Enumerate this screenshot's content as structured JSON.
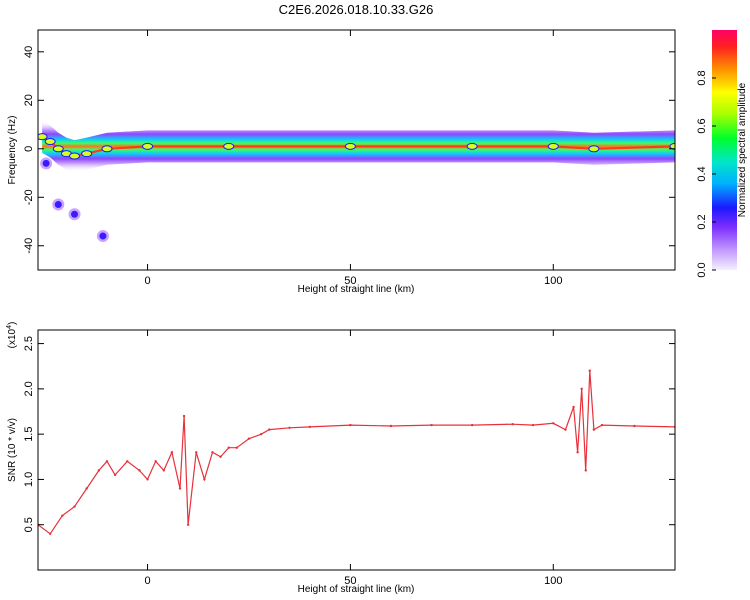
{
  "title": "C2E6.2026.018.10.33.G26",
  "chart_data": [
    {
      "type": "heatmap",
      "xlabel": "Height of straight line (km)",
      "ylabel": "Frequency (Hz)",
      "xlim": [
        -27,
        130
      ],
      "ylim": [
        -50,
        49
      ],
      "xticks": [
        "0",
        "50",
        "100"
      ],
      "yticks": [
        "-40",
        "-20",
        "0",
        "20",
        "40"
      ],
      "colorbar": {
        "label": "Normalized spectral amplitude",
        "ticks": [
          "0.0",
          "0.2",
          "0.4",
          "0.6",
          "0.8"
        ],
        "range": [
          0,
          1
        ]
      },
      "ridge": [
        {
          "x": -26,
          "y": 5
        },
        {
          "x": -24,
          "y": 3
        },
        {
          "x": -22,
          "y": 0
        },
        {
          "x": -20,
          "y": -2
        },
        {
          "x": -18,
          "y": -3
        },
        {
          "x": -15,
          "y": -2
        },
        {
          "x": -10,
          "y": 0
        },
        {
          "x": 0,
          "y": 1
        },
        {
          "x": 20,
          "y": 1
        },
        {
          "x": 50,
          "y": 1
        },
        {
          "x": 80,
          "y": 1
        },
        {
          "x": 100,
          "y": 1
        },
        {
          "x": 110,
          "y": 0
        },
        {
          "x": 130,
          "y": 1
        }
      ],
      "blobs": [
        {
          "x": -25,
          "y": -6
        },
        {
          "x": -22,
          "y": -23
        },
        {
          "x": -18,
          "y": -27
        },
        {
          "x": -11,
          "y": -36
        }
      ]
    },
    {
      "type": "line",
      "xlabel": "Height of straight line (km)",
      "ylabel": "SNR (10 * v/v)",
      "yscale_label": "(x10",
      "yscale_exp": "4",
      "yscale_close": ")",
      "xlim": [
        -27,
        130
      ],
      "ylim": [
        0,
        2.65
      ],
      "xticks": [
        "0",
        "50",
        "100"
      ],
      "yticks": [
        "0.5",
        "1.0",
        "1.5",
        "2.0",
        "2.5"
      ],
      "color": "#e8313a",
      "series": [
        {
          "x": [
            -27,
            -24,
            -21,
            -18,
            -15,
            -12,
            -10,
            -8,
            -5,
            -2,
            0,
            2,
            4,
            6,
            8,
            9,
            10,
            12,
            14,
            16,
            18,
            20,
            22,
            25,
            28,
            30,
            35,
            40,
            50,
            60,
            70,
            80,
            90,
            95,
            100,
            103,
            105,
            106,
            107,
            108,
            109,
            110,
            112,
            120,
            130
          ],
          "values": [
            0.5,
            0.4,
            0.6,
            0.7,
            0.9,
            1.1,
            1.2,
            1.05,
            1.2,
            1.1,
            1.0,
            1.2,
            1.1,
            1.3,
            0.9,
            1.7,
            0.5,
            1.3,
            1.0,
            1.3,
            1.25,
            1.35,
            1.35,
            1.45,
            1.5,
            1.55,
            1.57,
            1.58,
            1.6,
            1.59,
            1.6,
            1.6,
            1.61,
            1.6,
            1.62,
            1.55,
            1.8,
            1.3,
            2.0,
            1.1,
            2.2,
            1.55,
            1.6,
            1.59,
            1.58
          ]
        }
      ]
    }
  ]
}
